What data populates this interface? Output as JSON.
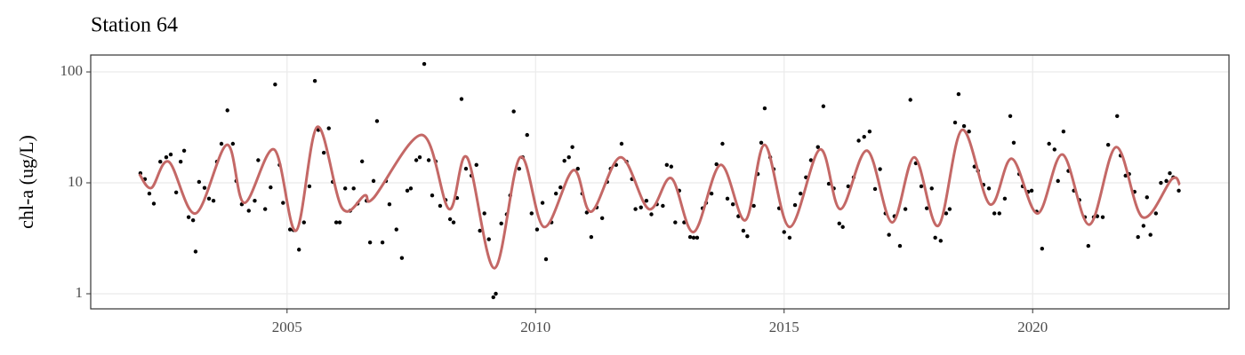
{
  "chart_data": {
    "type": "scatter",
    "title": "Station 64",
    "y_label": "chl-a (ug/L)",
    "xlim": [
      2001.05,
      2023.95
    ],
    "xticks": [
      2005,
      2010,
      2015,
      2020
    ],
    "ylim": [
      0.731,
      142
    ],
    "yticks": [
      1,
      10,
      100
    ],
    "log_y": true,
    "grid": true,
    "points": {
      "color": "#000000",
      "x": [
        2002.05,
        2002.14,
        2002.23,
        2002.32,
        2002.45,
        2002.57,
        2002.66,
        2002.77,
        2002.86,
        2002.93,
        2003.02,
        2003.11,
        2003.16,
        2003.23,
        2003.34,
        2003.43,
        2003.52,
        2003.59,
        2003.68,
        2003.8,
        2003.91,
        2003.98,
        2004.09,
        2004.23,
        2004.35,
        2004.42,
        2004.56,
        2004.67,
        2004.76,
        2004.85,
        2004.92,
        2005.06,
        2005.13,
        2005.24,
        2005.34,
        2005.45,
        2005.56,
        2005.63,
        2005.74,
        2005.84,
        2005.92,
        2005.99,
        2006.06,
        2006.17,
        2006.27,
        2006.34,
        2006.42,
        2006.51,
        2006.6,
        2006.67,
        2006.74,
        2006.81,
        2006.92,
        2006.99,
        2007.06,
        2007.2,
        2007.31,
        2007.42,
        2007.49,
        2007.6,
        2007.67,
        2007.76,
        2007.85,
        2007.92,
        2007.99,
        2008.08,
        2008.19,
        2008.28,
        2008.35,
        2008.42,
        2008.51,
        2008.6,
        2008.71,
        2008.81,
        2008.88,
        2008.97,
        2009.06,
        2009.15,
        2009.2,
        2009.31,
        2009.42,
        2009.49,
        2009.56,
        2009.67,
        2009.74,
        2009.83,
        2009.92,
        2010.03,
        2010.14,
        2010.21,
        2010.32,
        2010.41,
        2010.5,
        2010.58,
        2010.67,
        2010.74,
        2010.85,
        2010.94,
        2011.03,
        2011.12,
        2011.23,
        2011.34,
        2011.44,
        2011.51,
        2011.62,
        2011.73,
        2011.83,
        2011.94,
        2012.01,
        2012.12,
        2012.23,
        2012.33,
        2012.44,
        2012.56,
        2012.64,
        2012.73,
        2012.81,
        2012.89,
        2012.99,
        2013.11,
        2013.18,
        2013.25,
        2013.36,
        2013.43,
        2013.54,
        2013.64,
        2013.76,
        2013.86,
        2013.97,
        2014.08,
        2014.18,
        2014.26,
        2014.39,
        2014.47,
        2014.54,
        2014.61,
        2014.72,
        2014.79,
        2014.9,
        2015.0,
        2015.11,
        2015.22,
        2015.33,
        2015.44,
        2015.54,
        2015.68,
        2015.79,
        2015.9,
        2016.0,
        2016.11,
        2016.18,
        2016.29,
        2016.4,
        2016.5,
        2016.61,
        2016.72,
        2016.83,
        2016.93,
        2017.04,
        2017.11,
        2017.22,
        2017.33,
        2017.44,
        2017.54,
        2017.65,
        2017.76,
        2017.87,
        2017.97,
        2018.04,
        2018.15,
        2018.26,
        2018.33,
        2018.44,
        2018.51,
        2018.62,
        2018.72,
        2018.83,
        2018.9,
        2019.01,
        2019.12,
        2019.23,
        2019.33,
        2019.44,
        2019.55,
        2019.62,
        2019.73,
        2019.8,
        2019.91,
        2019.98,
        2020.08,
        2020.19,
        2020.33,
        2020.44,
        2020.51,
        2020.62,
        2020.72,
        2020.83,
        2020.94,
        2021.05,
        2021.12,
        2021.23,
        2021.3,
        2021.41,
        2021.52,
        2021.7,
        2021.77,
        2021.87,
        2021.94,
        2022.05,
        2022.12,
        2022.23,
        2022.3,
        2022.37,
        2022.48,
        2022.58,
        2022.69,
        2022.76,
        2022.83,
        2022.94
      ],
      "values": [
        12.2,
        10.8,
        8.0,
        6.5,
        15.5,
        17,
        18,
        8.2,
        15.5,
        19.5,
        4.9,
        4.6,
        2.4,
        10.2,
        9.0,
        7.2,
        6.9,
        15.5,
        22.5,
        45,
        22.5,
        10.4,
        6.4,
        5.6,
        6.9,
        16,
        5.8,
        9.1,
        77,
        14.5,
        6.6,
        3.8,
        3.75,
        2.5,
        4.4,
        9.3,
        83,
        30,
        18.7,
        31,
        10.2,
        4.4,
        4.4,
        8.9,
        5.6,
        8.9,
        6.5,
        15.6,
        6.9,
        2.9,
        10.4,
        36,
        2.9,
        10.4,
        6.4,
        3.8,
        2.1,
        8.5,
        8.9,
        16,
        17,
        118,
        16,
        7.7,
        15.6,
        6.2,
        7.0,
        4.7,
        4.4,
        7.3,
        57,
        13.4,
        11.6,
        14.5,
        3.7,
        5.3,
        3.1,
        0.93,
        1.0,
        4.3,
        5.2,
        7.7,
        44,
        13.4,
        17,
        27,
        5.3,
        3.8,
        6.6,
        2.05,
        4.4,
        8.0,
        9.1,
        15.8,
        17,
        21,
        13.4,
        8.0,
        5.4,
        3.25,
        6.0,
        4.8,
        10.2,
        13.4,
        14.5,
        22.5,
        15.5,
        10.8,
        5.8,
        6.0,
        6.9,
        5.2,
        6.4,
        6.2,
        14.5,
        14,
        4.4,
        8.5,
        4.4,
        3.25,
        3.2,
        3.2,
        5.9,
        6.6,
        8.0,
        14.7,
        22.5,
        7.2,
        6.4,
        5.0,
        3.7,
        3.3,
        6.2,
        12.0,
        23,
        47,
        17,
        13.3,
        5.9,
        3.6,
        3.2,
        6.3,
        8.0,
        11.2,
        16,
        21,
        49,
        9.8,
        8.9,
        4.3,
        4.0,
        9.3,
        11.2,
        24,
        26,
        29,
        8.8,
        13.3,
        5.3,
        3.4,
        5.0,
        2.7,
        5.8,
        56,
        15,
        9.3,
        5.9,
        8.9,
        3.2,
        3.0,
        5.3,
        5.8,
        35,
        63,
        32.5,
        29,
        14,
        12.8,
        9.6,
        8.9,
        5.3,
        5.3,
        7.2,
        40,
        23,
        12.0,
        9.3,
        8.3,
        8.5,
        5.5,
        2.55,
        22.5,
        20,
        10.4,
        29,
        12.8,
        8.5,
        7.0,
        4.9,
        2.7,
        4.9,
        5.0,
        4.9,
        22,
        40,
        17.6,
        11.6,
        12.0,
        8.3,
        3.25,
        4.1,
        7.4,
        3.4,
        5.3,
        10,
        10.4,
        12.2,
        11.2,
        8.5
      ]
    },
    "smooth": {
      "color": "#c46866",
      "x": [
        2002.03,
        2002.27,
        2002.62,
        2003.16,
        2003.79,
        2004.14,
        2004.74,
        2005.18,
        2005.61,
        2006.11,
        2006.56,
        2006.74,
        2007.72,
        2008.26,
        2008.62,
        2009.17,
        2009.69,
        2010.17,
        2010.76,
        2011.12,
        2011.71,
        2012.28,
        2012.73,
        2013.18,
        2013.72,
        2014.22,
        2014.61,
        2015.11,
        2015.72,
        2016.13,
        2016.67,
        2017.17,
        2017.62,
        2018.1,
        2018.58,
        2019.14,
        2019.58,
        2020.1,
        2020.6,
        2021.14,
        2021.68,
        2022.21,
        2022.8,
        2022.96
      ],
      "values": [
        12,
        9,
        15.5,
        5.3,
        22,
        6.6,
        20,
        3.7,
        32,
        5.9,
        7.7,
        7.3,
        27,
        5.8,
        17,
        1.7,
        17,
        4,
        13,
        5.5,
        17,
        5.8,
        11,
        3.6,
        14.5,
        4.6,
        22,
        4,
        20,
        5.8,
        19.5,
        4.4,
        17,
        4.1,
        30,
        6.4,
        16.5,
        5.3,
        18,
        4.2,
        21,
        4.9,
        10.8,
        9.6
      ]
    }
  }
}
